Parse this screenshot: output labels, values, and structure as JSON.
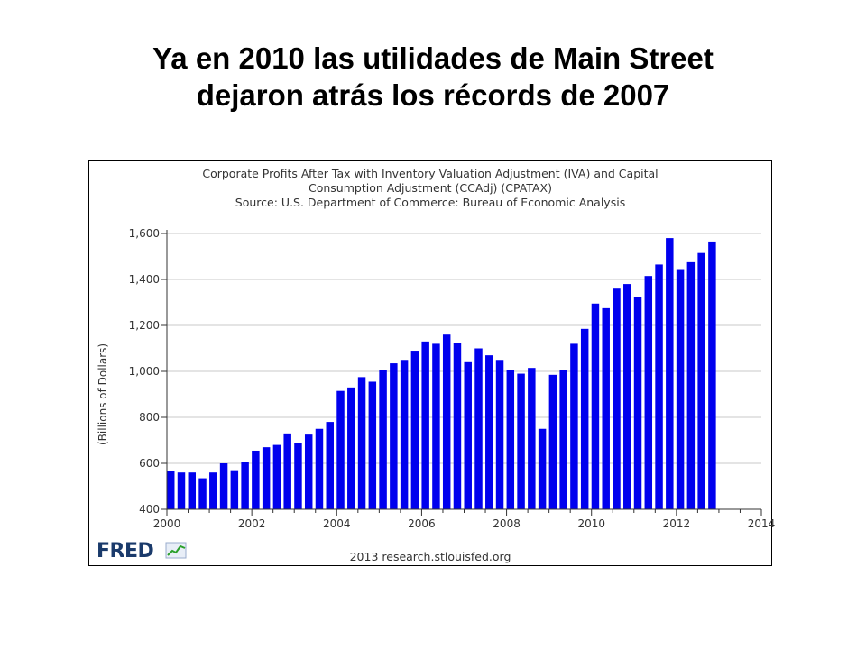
{
  "slide": {
    "title_line1": "Ya en 2010 las utilidades de Main Street",
    "title_line2": "dejaron atrás los récords de 2007"
  },
  "chart_data": {
    "type": "bar",
    "title_lines": [
      "Corporate Profits After Tax with Inventory Valuation Adjustment (IVA) and Capital",
      "Consumption Adjustment (CCAdj) (CPATAX)",
      "Source: U.S. Department of Commerce: Bureau of Economic Analysis"
    ],
    "ylabel": "(Billions of Dollars)",
    "xlabel": "",
    "ylim": [
      400,
      1600
    ],
    "yticks": [
      "400",
      "600",
      "800",
      "1,000",
      "1,200",
      "1,400",
      "1,600"
    ],
    "xlim": [
      2000,
      2014
    ],
    "xticks": [
      "2000",
      "2002",
      "2004",
      "2006",
      "2008",
      "2010",
      "2012",
      "2014"
    ],
    "grid": true,
    "bar_color": "#0000ee",
    "x": [
      "2000 Q1",
      "2000 Q2",
      "2000 Q3",
      "2000 Q4",
      "2001 Q1",
      "2001 Q2",
      "2001 Q3",
      "2001 Q4",
      "2002 Q1",
      "2002 Q2",
      "2002 Q3",
      "2002 Q4",
      "2003 Q1",
      "2003 Q2",
      "2003 Q3",
      "2003 Q4",
      "2004 Q1",
      "2004 Q2",
      "2004 Q3",
      "2004 Q4",
      "2005 Q1",
      "2005 Q2",
      "2005 Q3",
      "2005 Q4",
      "2006 Q1",
      "2006 Q2",
      "2006 Q3",
      "2006 Q4",
      "2007 Q1",
      "2007 Q2",
      "2007 Q3",
      "2007 Q4",
      "2008 Q1",
      "2008 Q2",
      "2008 Q3",
      "2008 Q4",
      "2009 Q1",
      "2009 Q2",
      "2009 Q3",
      "2009 Q4",
      "2010 Q1",
      "2010 Q2",
      "2010 Q3",
      "2010 Q4",
      "2011 Q1",
      "2011 Q2",
      "2011 Q3",
      "2011 Q4",
      "2012 Q1",
      "2012 Q2",
      "2012 Q3",
      "2012 Q4"
    ],
    "values": [
      565,
      560,
      560,
      535,
      560,
      600,
      570,
      605,
      655,
      670,
      680,
      730,
      690,
      725,
      750,
      780,
      915,
      930,
      975,
      955,
      1005,
      1035,
      1050,
      1090,
      1130,
      1120,
      1160,
      1125,
      1040,
      1100,
      1070,
      1050,
      1005,
      990,
      1015,
      750,
      985,
      1005,
      1120,
      1185,
      1295,
      1275,
      1360,
      1380,
      1325,
      1415,
      1465,
      1580,
      1445,
      1475,
      1515,
      1565
    ]
  },
  "footer": {
    "logo_text": "FRED",
    "credit": "2013 research.stlouisfed.org"
  }
}
